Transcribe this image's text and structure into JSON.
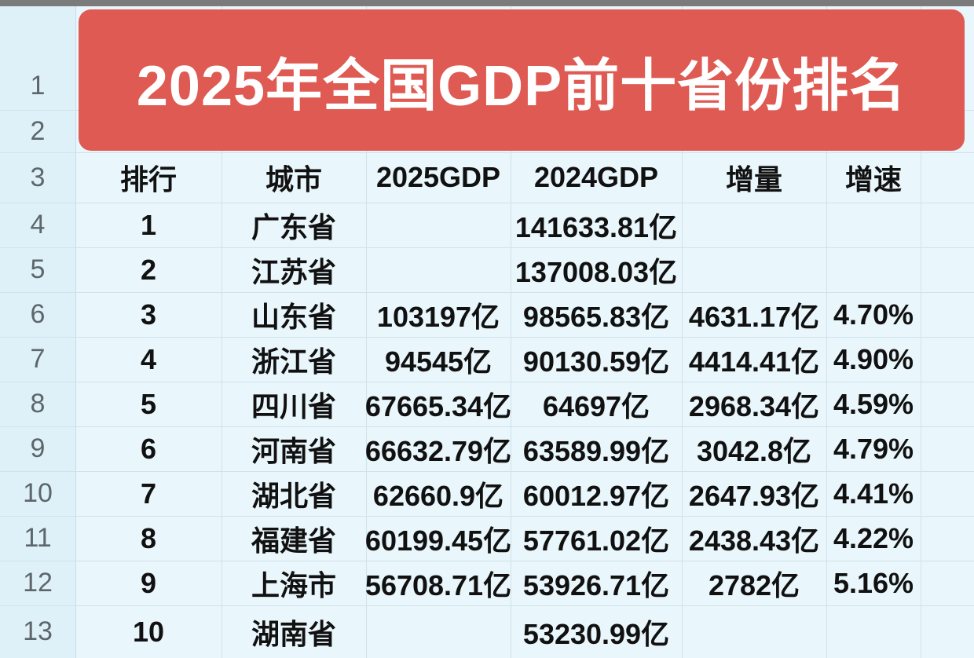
{
  "title": "2025年全国GDP前十省份排名",
  "row_numbers": [
    "1",
    "2",
    "3",
    "4",
    "5",
    "6",
    "7",
    "8",
    "9",
    "10",
    "11",
    "12",
    "13"
  ],
  "headers": [
    "排行",
    "城市",
    "2025GDP",
    "2024GDP",
    "增量",
    "增速"
  ],
  "rows": [
    [
      "1",
      "广东省",
      "",
      "141633.81亿",
      "",
      ""
    ],
    [
      "2",
      "江苏省",
      "",
      "137008.03亿",
      "",
      ""
    ],
    [
      "3",
      "山东省",
      "103197亿",
      "98565.83亿",
      "4631.17亿",
      "4.70%"
    ],
    [
      "4",
      "浙江省",
      "94545亿",
      "90130.59亿",
      "4414.41亿",
      "4.90%"
    ],
    [
      "5",
      "四川省",
      "67665.34亿",
      "64697亿",
      "2968.34亿",
      "4.59%"
    ],
    [
      "6",
      "河南省",
      "66632.79亿",
      "63589.99亿",
      "3042.8亿",
      "4.79%"
    ],
    [
      "7",
      "湖北省",
      "62660.9亿",
      "60012.97亿",
      "2647.93亿",
      "4.41%"
    ],
    [
      "8",
      "福建省",
      "60199.45亿",
      "57761.02亿",
      "2438.43亿",
      "4.22%"
    ],
    [
      "9",
      "上海市",
      "56708.71亿",
      "53926.71亿",
      "2782亿",
      "5.16%"
    ],
    [
      "10",
      "湖南省",
      "",
      "53230.99亿",
      "",
      ""
    ]
  ]
}
